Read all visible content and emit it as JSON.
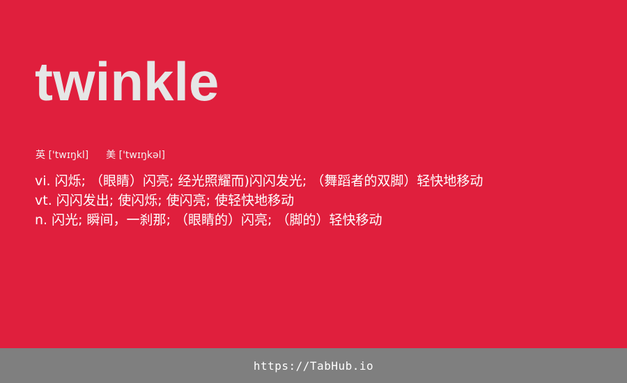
{
  "word": "twinkle",
  "pronunciation": {
    "uk_label": "英",
    "uk_ipa": "['twɪŋkl]",
    "us_label": "美",
    "us_ipa": "['twɪŋkəl]"
  },
  "definitions": [
    {
      "text": "vi. 闪烁; （眼睛）闪亮; 经光照耀而)闪闪发光; （舞蹈者的双脚）轻快地移动"
    },
    {
      "text": "vt. 闪闪发出; 使闪烁; 使闪亮; 使轻快地移动"
    },
    {
      "text": "n. 闪光; 瞬间，一刹那; （眼睛的）闪亮; （脚的）轻快移动"
    }
  ],
  "footer": {
    "url": "https://TabHub.io"
  },
  "colors": {
    "background": "#e01f3d",
    "word": "#e6e6e6",
    "footer": "#7f7f7f"
  }
}
